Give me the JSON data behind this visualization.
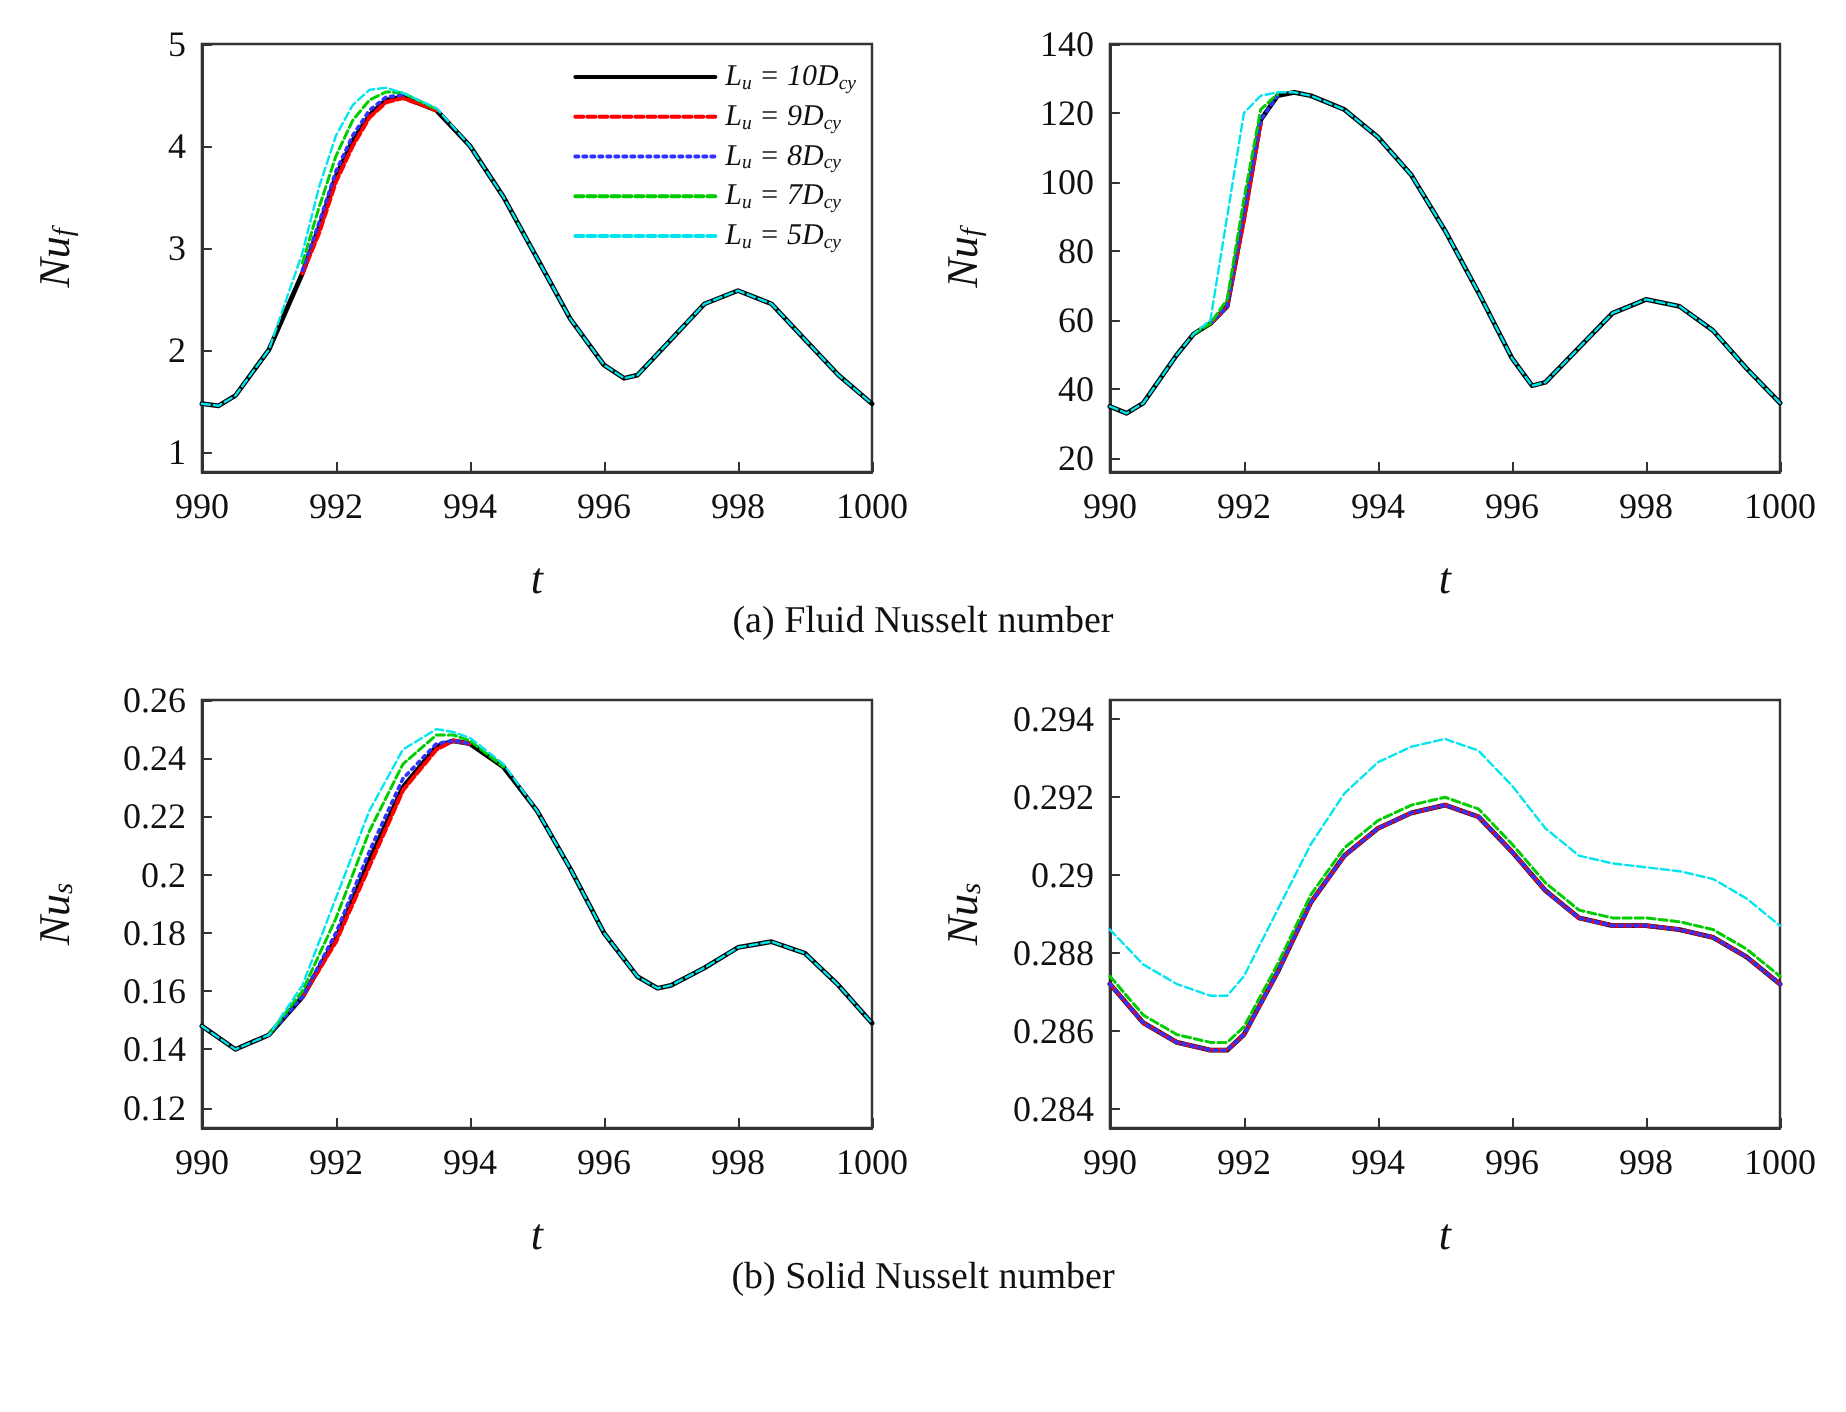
{
  "chart_data": [
    {
      "type": "line",
      "xlabel": "t",
      "ylabel": "Nu$_{f}$",
      "xlim": [
        990,
        1000
      ],
      "ylim": [
        0.8,
        5
      ],
      "xticks": [
        990,
        992,
        994,
        996,
        998,
        1000
      ],
      "yticks": [
        1,
        2,
        3,
        4,
        5
      ],
      "grid": false,
      "legend": "top right",
      "marker": "none",
      "annotations": [
        "(a) Fluid Nusselt number"
      ],
      "x": [
        990,
        990.25,
        990.5,
        991,
        991.5,
        991.75,
        992,
        992.25,
        992.5,
        992.75,
        993,
        993.5,
        994,
        994.5,
        995,
        995.5,
        996,
        996.3,
        996.5,
        997,
        997.5,
        998,
        998.5,
        999,
        999.5,
        1000
      ],
      "series": [
        {
          "name": "L$_{u}$ = 10D$_{cy}$",
          "color": "#000000",
          "line_style": "solid",
          "values": [
            1.47,
            1.45,
            1.55,
            2.0,
            2.75,
            3.2,
            3.7,
            4.05,
            4.3,
            4.45,
            4.48,
            4.35,
            4.0,
            3.5,
            2.9,
            2.3,
            1.85,
            1.72,
            1.75,
            2.1,
            2.45,
            2.58,
            2.45,
            2.1,
            1.75,
            1.47
          ]
        },
        {
          "name": "L$_{u}$ = 9D$_{cy}$",
          "color": "#ff0000",
          "line_style": "dashed",
          "values": [
            null,
            null,
            null,
            null,
            2.75,
            3.15,
            3.65,
            4.0,
            4.28,
            4.43,
            4.47,
            4.35,
            null,
            null,
            null,
            null,
            null,
            null,
            null,
            null,
            null,
            null,
            null,
            null,
            null,
            null
          ]
        },
        {
          "name": "L$_{u}$ = 8D$_{cy}$",
          "color": "#3030ff",
          "line_style": "dotted",
          "values": [
            null,
            null,
            null,
            null,
            2.78,
            3.25,
            3.75,
            4.1,
            4.35,
            4.48,
            4.5,
            null,
            null,
            null,
            null,
            null,
            null,
            null,
            null,
            null,
            null,
            null,
            null,
            null,
            null,
            null
          ]
        },
        {
          "name": "L$_{u}$ = 7D$_{cy}$",
          "color": "#00cc00",
          "line_style": "dashed",
          "values": [
            null,
            null,
            null,
            null,
            2.85,
            3.4,
            3.9,
            4.25,
            4.45,
            4.53,
            4.52,
            4.36,
            null,
            null,
            null,
            null,
            null,
            null,
            null,
            null,
            null,
            null,
            null,
            null,
            null,
            null
          ]
        },
        {
          "name": "L$_{u}$ = 5D$_{cy}$",
          "color": "#00e5ee",
          "line_style": "dashed",
          "values": [
            1.47,
            1.45,
            1.55,
            2.0,
            2.95,
            3.6,
            4.1,
            4.4,
            4.55,
            4.57,
            4.52,
            4.37,
            4.0,
            3.5,
            2.9,
            2.3,
            1.85,
            1.72,
            1.75,
            2.1,
            2.45,
            2.58,
            2.45,
            2.1,
            1.75,
            1.47
          ]
        }
      ]
    },
    {
      "type": "line",
      "xlabel": "t",
      "ylabel": "Nu$_{f}$",
      "xlim": [
        990,
        1000
      ],
      "ylim": [
        16,
        140
      ],
      "xticks": [
        990,
        992,
        994,
        996,
        998,
        1000
      ],
      "yticks": [
        20,
        40,
        60,
        80,
        100,
        120,
        140
      ],
      "grid": false,
      "legend": false,
      "marker": "none",
      "x": [
        990,
        990.25,
        990.5,
        991,
        991.25,
        991.5,
        991.75,
        992,
        992.25,
        992.5,
        992.75,
        993,
        993.5,
        994,
        994.5,
        995,
        995.5,
        996,
        996.3,
        996.5,
        997,
        997.5,
        998,
        998.5,
        999,
        999.5,
        1000
      ],
      "series": [
        {
          "color": "#000000",
          "line_style": "solid",
          "values": [
            35,
            33,
            36,
            50,
            56,
            59,
            64,
            90,
            118,
            125,
            126,
            125,
            121,
            113,
            102,
            86,
            68,
            49,
            41,
            42,
            52,
            62,
            66,
            64,
            57,
            46,
            36
          ]
        },
        {
          "color": "#ff0000",
          "line_style": "dashed",
          "values": [
            null,
            null,
            null,
            null,
            null,
            59,
            64,
            89,
            117,
            null,
            null,
            null,
            null,
            null,
            null,
            null,
            null,
            null,
            null,
            null,
            null,
            null,
            null,
            null,
            null,
            null,
            null
          ]
        },
        {
          "color": "#3030ff",
          "line_style": "dotted",
          "values": [
            null,
            null,
            null,
            null,
            null,
            59,
            64,
            91,
            118,
            125,
            null,
            null,
            null,
            null,
            null,
            null,
            null,
            null,
            null,
            null,
            null,
            null,
            null,
            null,
            null,
            null,
            null
          ]
        },
        {
          "color": "#00cc00",
          "line_style": "dashed",
          "values": [
            null,
            null,
            null,
            null,
            56,
            59,
            66,
            95,
            121,
            125.5,
            null,
            null,
            null,
            null,
            null,
            null,
            null,
            null,
            null,
            null,
            null,
            null,
            null,
            null,
            null,
            null,
            null
          ]
        },
        {
          "color": "#00e5ee",
          "line_style": "dashed",
          "values": [
            35,
            33,
            36,
            50,
            56,
            60,
            90,
            120,
            125,
            126,
            126,
            125,
            121,
            113,
            102,
            86,
            68,
            49,
            41,
            42,
            52,
            62,
            66,
            64,
            57,
            46,
            36
          ]
        }
      ]
    },
    {
      "type": "line",
      "xlabel": "t",
      "ylabel": "Nu$_{s}$",
      "xlim": [
        990,
        1000
      ],
      "ylim": [
        0.113,
        0.26
      ],
      "xticks": [
        990,
        992,
        994,
        996,
        998,
        1000
      ],
      "yticks": [
        0.12,
        0.14,
        0.16,
        0.18,
        {
          "value": 0.2,
          "label": "0.2"
        },
        0.22,
        0.24,
        0.26
      ],
      "grid": false,
      "legend": false,
      "marker": "none",
      "annotations": [
        "(b) Solid Nusselt number"
      ],
      "x": [
        990,
        990.5,
        991,
        991.5,
        992,
        992.5,
        993,
        993.5,
        993.75,
        994,
        994.5,
        995,
        995.5,
        996,
        996.5,
        996.8,
        997,
        997.5,
        998,
        998.5,
        999,
        999.5,
        1000
      ],
      "series": [
        {
          "color": "#000000",
          "line_style": "solid",
          "values": [
            0.148,
            0.14,
            0.145,
            0.158,
            0.178,
            0.205,
            0.23,
            0.244,
            0.246,
            0.245,
            0.237,
            0.222,
            0.202,
            0.18,
            0.165,
            0.161,
            0.162,
            0.168,
            0.175,
            0.177,
            0.173,
            0.162,
            0.149
          ]
        },
        {
          "color": "#ff0000",
          "line_style": "dashed",
          "values": [
            null,
            null,
            null,
            0.158,
            0.177,
            0.203,
            0.229,
            0.243,
            0.246,
            0.245,
            null,
            null,
            null,
            null,
            null,
            null,
            null,
            null,
            null,
            null,
            null,
            null,
            null
          ]
        },
        {
          "color": "#3030ff",
          "line_style": "dotted",
          "values": [
            null,
            null,
            0.145,
            0.158,
            0.18,
            0.208,
            0.233,
            0.245,
            0.246,
            0.245,
            null,
            null,
            null,
            null,
            null,
            null,
            null,
            null,
            null,
            null,
            null,
            null,
            null
          ]
        },
        {
          "color": "#00cc00",
          "line_style": "dashed",
          "values": [
            null,
            null,
            0.145,
            0.16,
            0.185,
            0.215,
            0.238,
            0.248,
            0.248,
            0.246,
            0.237,
            null,
            null,
            null,
            null,
            null,
            null,
            null,
            null,
            null,
            null,
            null,
            null
          ]
        },
        {
          "color": "#00e5ee",
          "line_style": "dashed",
          "values": [
            0.148,
            0.14,
            0.145,
            0.162,
            0.192,
            0.222,
            0.243,
            0.25,
            0.249,
            0.247,
            0.238,
            0.222,
            0.202,
            0.18,
            0.165,
            0.161,
            0.162,
            0.168,
            0.175,
            0.177,
            0.173,
            0.162,
            0.149
          ]
        }
      ]
    },
    {
      "type": "line",
      "xlabel": "t",
      "ylabel": "Nu$_{s}$",
      "xlim": [
        990,
        1000
      ],
      "ylim": [
        0.2835,
        0.2945
      ],
      "xticks": [
        990,
        992,
        994,
        996,
        998,
        1000
      ],
      "yticks": [
        0.284,
        0.286,
        0.288,
        {
          "value": 0.29,
          "label": "0.29"
        },
        0.292,
        0.294
      ],
      "grid": false,
      "legend": false,
      "marker": "none",
      "x": [
        990,
        990.5,
        991,
        991.5,
        991.75,
        992,
        992.5,
        993,
        993.5,
        994,
        994.5,
        995,
        995.5,
        996,
        996.5,
        997,
        997.5,
        998,
        998.5,
        999,
        999.5,
        1000
      ],
      "series": [
        {
          "color": "#000000",
          "line_style": "solid",
          "values": [
            0.2872,
            0.2862,
            0.2857,
            0.2855,
            0.2855,
            0.2859,
            0.2875,
            0.2893,
            0.2905,
            0.2912,
            0.2916,
            0.2918,
            0.2915,
            0.2906,
            0.2896,
            0.2889,
            0.2887,
            0.2887,
            0.2886,
            0.2884,
            0.2879,
            0.2872
          ]
        },
        {
          "color": "#ff0000",
          "line_style": "dashed",
          "values": [
            0.2872,
            0.2862,
            0.2857,
            0.2855,
            0.2855,
            0.2859,
            0.2875,
            0.2893,
            0.2905,
            0.2912,
            0.2916,
            0.2918,
            0.2915,
            0.2906,
            0.2896,
            0.2889,
            0.2887,
            0.2887,
            0.2886,
            0.2884,
            0.2879,
            0.2872
          ]
        },
        {
          "color": "#3030ff",
          "line_style": "dotted",
          "values": [
            0.2872,
            0.2862,
            0.2857,
            0.2855,
            0.2855,
            0.2859,
            0.2875,
            0.2893,
            0.2905,
            0.2912,
            0.2916,
            0.2918,
            0.2915,
            0.2906,
            0.2896,
            0.2889,
            0.2887,
            0.2887,
            0.2886,
            0.2884,
            0.2879,
            0.2872
          ]
        },
        {
          "color": "#00cc00",
          "line_style": "dashed",
          "values": [
            0.2874,
            0.2864,
            0.2859,
            0.2857,
            0.2857,
            0.2861,
            0.2877,
            0.2895,
            0.2907,
            0.2914,
            0.2918,
            0.292,
            0.2917,
            0.2908,
            0.2898,
            0.2891,
            0.2889,
            0.2889,
            0.2888,
            0.2886,
            0.2881,
            0.2874
          ]
        },
        {
          "color": "#00e5ee",
          "line_style": "dashed",
          "values": [
            0.2886,
            0.2877,
            0.2872,
            0.2869,
            0.2869,
            0.2874,
            0.2891,
            0.2908,
            0.2921,
            0.2929,
            0.2933,
            0.2935,
            0.2932,
            0.2923,
            0.2912,
            0.2905,
            0.2903,
            0.2902,
            0.2901,
            0.2899,
            0.2894,
            0.2887
          ]
        }
      ]
    }
  ]
}
